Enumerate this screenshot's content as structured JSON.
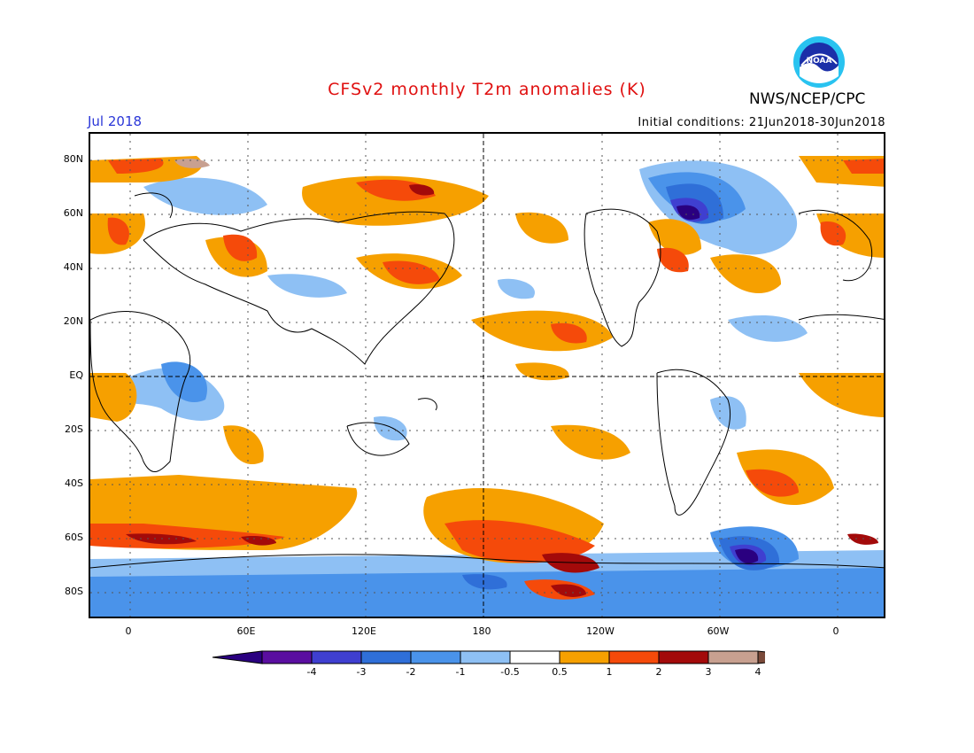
{
  "header": {
    "title": "CFSv2 monthly T2m anomalies (K)",
    "valid_month": "Jul 2018",
    "initial_conditions": "Initial conditions: 21Jun2018-30Jun2018",
    "agency": "NWS/NCEP/CPC",
    "logo_text": "NOAA"
  },
  "axes": {
    "lat_labels": [
      "80N",
      "60N",
      "40N",
      "20N",
      "EQ",
      "20S",
      "40S",
      "60S",
      "80S"
    ],
    "lon_labels": [
      "0",
      "60E",
      "120E",
      "180",
      "120W",
      "60W",
      "0"
    ]
  },
  "colorbar": {
    "labels": [
      "-4",
      "-3",
      "-2",
      "-1",
      "-0.5",
      "0.5",
      "1",
      "2",
      "3",
      "4"
    ],
    "colors": [
      "#5a0ea0",
      "#3f3fd0",
      "#2f6fd8",
      "#4a93ea",
      "#8ec0f4",
      "#ffffff",
      "#f6a000",
      "#f54a0a",
      "#a30a0a",
      "#c8a090"
    ],
    "low_extend_color": "#2a0080",
    "high_extend_color": "#7a4a3a"
  },
  "colors": {
    "title": "#e01010",
    "date": "#2a36d8"
  }
}
